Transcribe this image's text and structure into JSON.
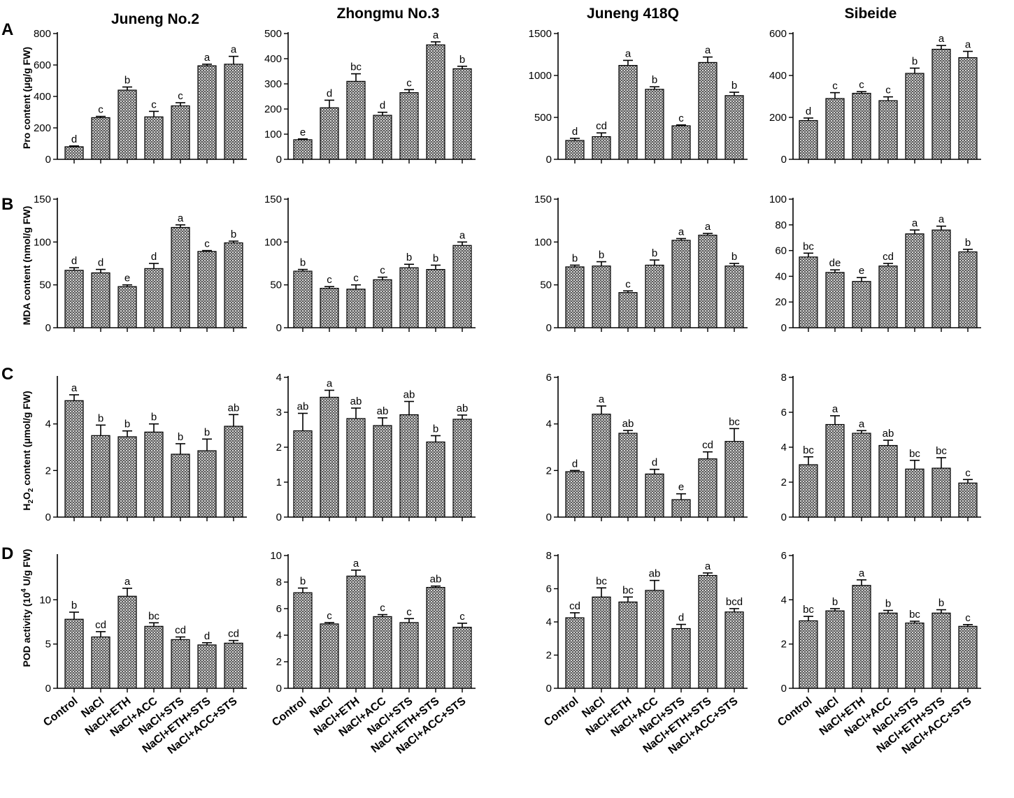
{
  "cultivars": [
    "Juneng No.2",
    "Zhongmu No.3",
    "Juneng 418Q",
    "Sibeide"
  ],
  "categories": [
    "Control",
    "NaCl",
    "NaCl+ETH",
    "NaCl+ACC",
    "NaCl+STS",
    "NaCl+ETH+STS",
    "NaCl+ACC+STS"
  ],
  "chart_data": [
    {
      "row": "A",
      "type": "bar",
      "ylabel": "Pro content (μg/g FW)",
      "panels": [
        {
          "title": "Juneng No.2",
          "ylim": [
            0,
            800
          ],
          "ticks": [
            0,
            200,
            400,
            600,
            800
          ],
          "values": [
            80,
            265,
            440,
            270,
            340,
            595,
            605
          ],
          "errors": [
            5,
            8,
            20,
            35,
            20,
            10,
            50
          ],
          "letters": [
            "d",
            "c",
            "b",
            "c",
            "c",
            "a",
            "a"
          ]
        },
        {
          "title": "Zhongmu No.3",
          "ylim": [
            0,
            500
          ],
          "ticks": [
            0,
            100,
            200,
            300,
            400,
            500
          ],
          "values": [
            78,
            205,
            310,
            175,
            265,
            455,
            360
          ],
          "errors": [
            3,
            30,
            30,
            12,
            12,
            12,
            10
          ],
          "letters": [
            "e",
            "d",
            "bc",
            "d",
            "c",
            "a",
            "b"
          ]
        },
        {
          "title": "Juneng 418Q",
          "ylim": [
            0,
            1500
          ],
          "ticks": [
            0,
            500,
            1000,
            1500
          ],
          "values": [
            225,
            270,
            1120,
            835,
            400,
            1155,
            760
          ],
          "errors": [
            25,
            45,
            60,
            30,
            10,
            65,
            40
          ],
          "letters": [
            "d",
            "cd",
            "a",
            "b",
            "c",
            "a",
            "b"
          ]
        },
        {
          "title": "Sibeide",
          "ylim": [
            0,
            600
          ],
          "ticks": [
            0,
            200,
            400,
            600
          ],
          "values": [
            185,
            290,
            315,
            280,
            410,
            525,
            485
          ],
          "errors": [
            12,
            28,
            8,
            18,
            25,
            18,
            30
          ],
          "letters": [
            "d",
            "c",
            "c",
            "c",
            "b",
            "a",
            "a"
          ]
        }
      ]
    },
    {
      "row": "B",
      "type": "bar",
      "ylabel": "MDA content (nmol/g FW)",
      "panels": [
        {
          "title": "Juneng No.2",
          "ylim": [
            0,
            150
          ],
          "ticks": [
            0,
            50,
            100,
            150
          ],
          "values": [
            67,
            64,
            48,
            69,
            117,
            89,
            99
          ],
          "errors": [
            3,
            4,
            2,
            6,
            3,
            1,
            2
          ],
          "letters": [
            "d",
            "d",
            "e",
            "d",
            "a",
            "c",
            "b"
          ]
        },
        {
          "title": "Zhongmu No.3",
          "ylim": [
            0,
            150
          ],
          "ticks": [
            0,
            50,
            100,
            150
          ],
          "values": [
            66,
            46,
            45,
            56,
            70,
            68,
            96
          ],
          "errors": [
            2,
            2,
            5,
            3,
            4,
            5,
            4
          ],
          "letters": [
            "b",
            "c",
            "c",
            "c",
            "b",
            "b",
            "a"
          ]
        },
        {
          "title": "Juneng 418Q",
          "ylim": [
            0,
            150
          ],
          "ticks": [
            0,
            50,
            100,
            150
          ],
          "values": [
            71,
            72,
            41,
            73,
            102,
            108,
            72
          ],
          "errors": [
            2,
            5,
            2,
            6,
            2,
            2,
            3
          ],
          "letters": [
            "b",
            "b",
            "c",
            "b",
            "a",
            "a",
            "b"
          ]
        },
        {
          "title": "Sibeide",
          "ylim": [
            0,
            100
          ],
          "ticks": [
            0,
            20,
            40,
            60,
            80,
            100
          ],
          "values": [
            55,
            43,
            36,
            48,
            73,
            76,
            59
          ],
          "errors": [
            3,
            2,
            3,
            2,
            3,
            3,
            2
          ],
          "letters": [
            "bc",
            "de",
            "e",
            "cd",
            "a",
            "a",
            "b"
          ]
        }
      ]
    },
    {
      "row": "C",
      "type": "bar",
      "ylabel_main": "H",
      "ylabel_sub1": "2",
      "ylabel_mid": "O",
      "ylabel_sub2": "2",
      "ylabel_end": " content (μmol/g FW)",
      "panels": [
        {
          "title": "Juneng No.2",
          "ylim": [
            0,
            6
          ],
          "ticks": [
            0,
            2,
            4
          ],
          "values": [
            5.0,
            3.5,
            3.45,
            3.65,
            2.7,
            2.85,
            3.9
          ],
          "errors": [
            0.25,
            0.45,
            0.25,
            0.35,
            0.45,
            0.5,
            0.5
          ],
          "letters": [
            "a",
            "b",
            "b",
            "b",
            "b",
            "b",
            "ab"
          ]
        },
        {
          "title": "Zhongmu No.3",
          "ylim": [
            0,
            4
          ],
          "ticks": [
            0,
            1,
            2,
            3,
            4
          ],
          "values": [
            2.47,
            3.43,
            2.82,
            2.62,
            2.93,
            2.15,
            2.8
          ],
          "errors": [
            0.5,
            0.2,
            0.3,
            0.22,
            0.38,
            0.18,
            0.12
          ],
          "letters": [
            "ab",
            "a",
            "ab",
            "ab",
            "ab",
            "b",
            "ab"
          ]
        },
        {
          "title": "Juneng 418Q",
          "ylim": [
            0,
            6
          ],
          "ticks": [
            0,
            2,
            4,
            6
          ],
          "values": [
            1.95,
            4.42,
            3.6,
            1.85,
            0.75,
            2.5,
            3.25
          ],
          "errors": [
            0.05,
            0.35,
            0.12,
            0.2,
            0.25,
            0.3,
            0.55
          ],
          "letters": [
            "d",
            "a",
            "ab",
            "d",
            "e",
            "cd",
            "bc"
          ]
        },
        {
          "title": "Sibeide",
          "ylim": [
            0,
            8
          ],
          "ticks": [
            0,
            2,
            4,
            6,
            8
          ],
          "values": [
            3.0,
            5.3,
            4.8,
            4.1,
            2.75,
            2.8,
            1.95
          ],
          "errors": [
            0.45,
            0.5,
            0.15,
            0.3,
            0.5,
            0.6,
            0.2
          ],
          "letters": [
            "bc",
            "a",
            "a",
            "ab",
            "bc",
            "bc",
            "c"
          ]
        }
      ]
    },
    {
      "row": "D",
      "type": "bar",
      "ylabel_main": "POD activity (10",
      "ylabel_sup": "4",
      "ylabel_end": "  U/g FW)",
      "panels": [
        {
          "title": "Juneng No.2",
          "ylim": [
            0,
            15
          ],
          "ticks": [
            0,
            5,
            10
          ],
          "values": [
            7.8,
            5.8,
            10.4,
            7.0,
            5.5,
            4.9,
            5.1
          ],
          "errors": [
            0.8,
            0.6,
            0.9,
            0.4,
            0.3,
            0.25,
            0.3
          ],
          "letters": [
            "b",
            "cd",
            "a",
            "bc",
            "cd",
            "d",
            "cd"
          ]
        },
        {
          "title": "Zhongmu No.3",
          "ylim": [
            0,
            10
          ],
          "ticks": [
            0,
            2,
            4,
            6,
            8,
            10
          ],
          "values": [
            7.2,
            4.85,
            8.45,
            5.4,
            4.95,
            7.6,
            4.6
          ],
          "errors": [
            0.35,
            0.1,
            0.45,
            0.15,
            0.3,
            0.1,
            0.3
          ],
          "letters": [
            "b",
            "c",
            "a",
            "c",
            "c",
            "ab",
            "c"
          ]
        },
        {
          "title": "Juneng 418Q",
          "ylim": [
            0,
            8
          ],
          "ticks": [
            0,
            2,
            4,
            6,
            8
          ],
          "values": [
            4.25,
            5.5,
            5.2,
            5.9,
            3.6,
            6.8,
            4.6
          ],
          "errors": [
            0.3,
            0.55,
            0.3,
            0.6,
            0.25,
            0.15,
            0.2
          ],
          "letters": [
            "cd",
            "bc",
            "bc",
            "ab",
            "d",
            "a",
            "bcd"
          ]
        },
        {
          "title": "Sibeide",
          "ylim": [
            0,
            6
          ],
          "ticks": [
            0,
            2,
            4,
            6
          ],
          "values": [
            3.05,
            3.5,
            4.65,
            3.4,
            2.95,
            3.4,
            2.8
          ],
          "errors": [
            0.2,
            0.1,
            0.25,
            0.12,
            0.08,
            0.15,
            0.08
          ],
          "letters": [
            "bc",
            "b",
            "a",
            "b",
            "bc",
            "b",
            "c"
          ]
        }
      ]
    }
  ]
}
